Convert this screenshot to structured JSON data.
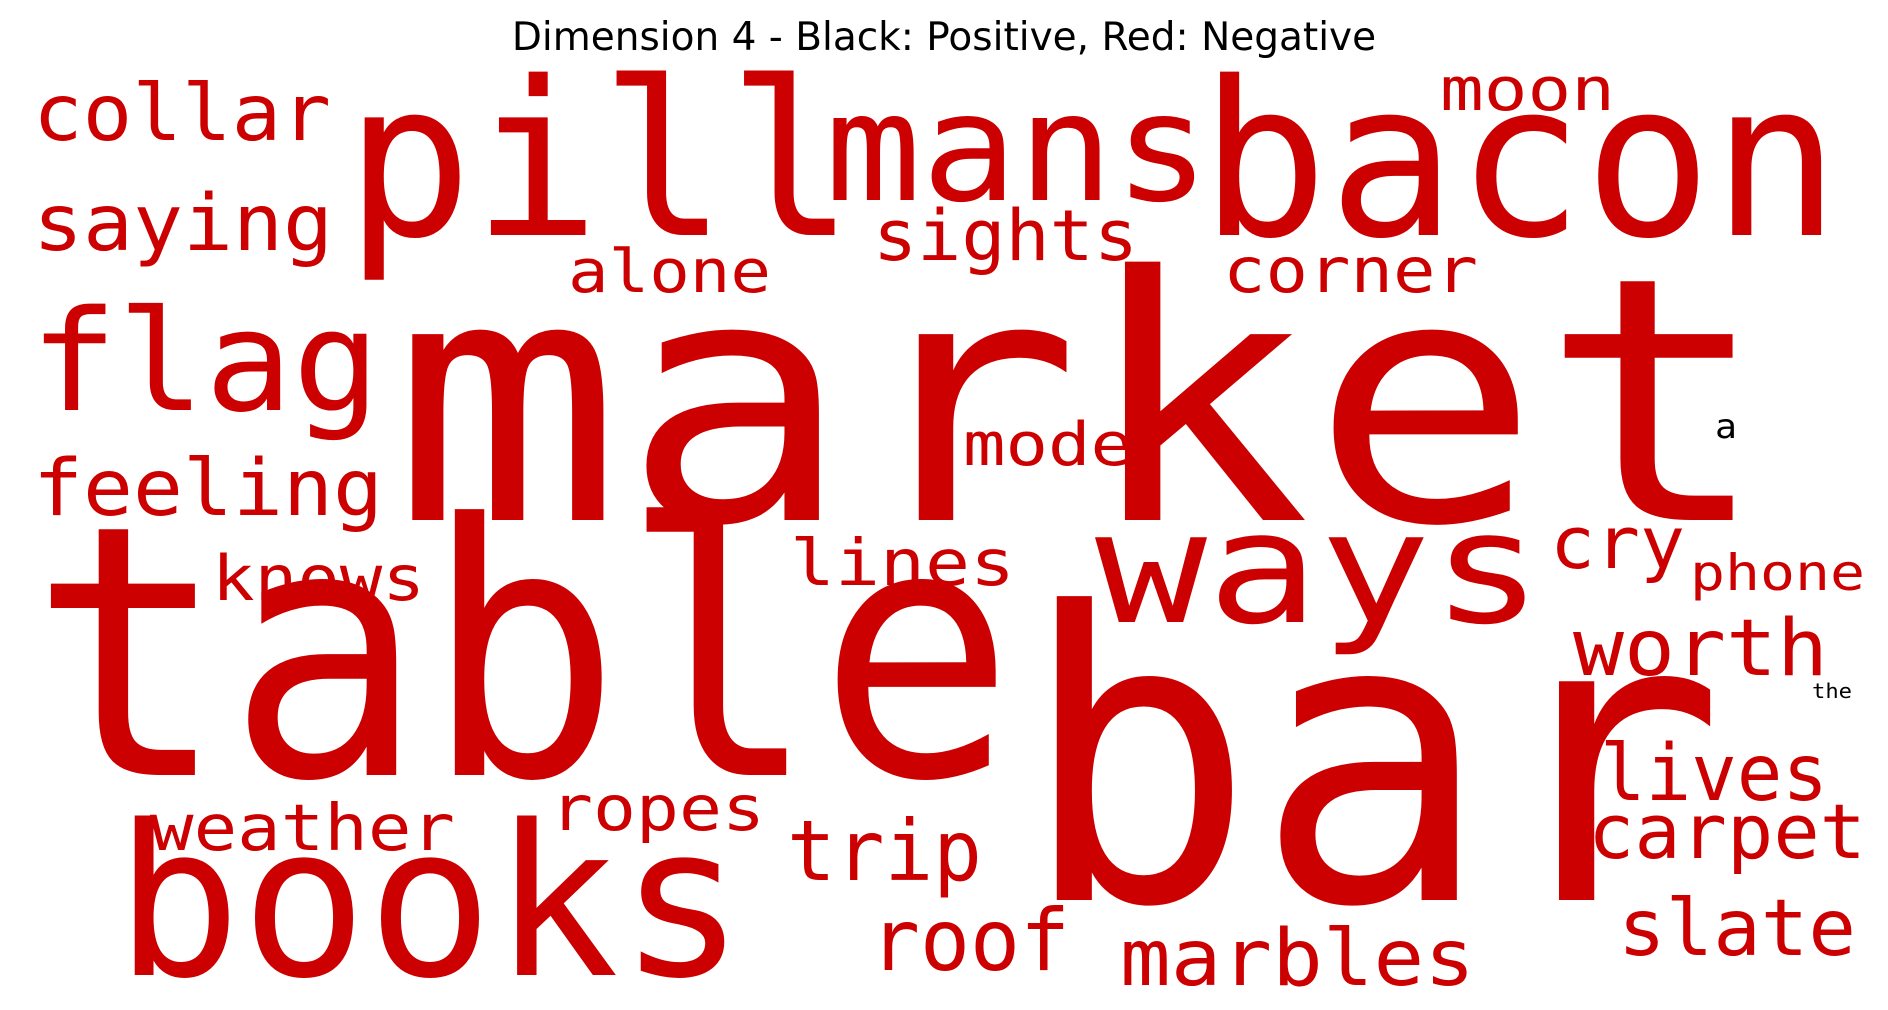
{
  "title": "Dimension 4 - Black: Positive, Red: Negative",
  "colors": {
    "negative": "#CC0000",
    "positive": "#000000"
  },
  "words": [
    {
      "text": "market",
      "polarity": "negative"
    },
    {
      "text": "table",
      "polarity": "negative"
    },
    {
      "text": "bar",
      "polarity": "negative"
    },
    {
      "text": "pill",
      "polarity": "negative"
    },
    {
      "text": "bacon",
      "polarity": "negative"
    },
    {
      "text": "mans",
      "polarity": "negative"
    },
    {
      "text": "books",
      "polarity": "negative"
    },
    {
      "text": "ways",
      "polarity": "negative"
    },
    {
      "text": "flag",
      "polarity": "negative"
    },
    {
      "text": "collar",
      "polarity": "negative"
    },
    {
      "text": "saying",
      "polarity": "negative"
    },
    {
      "text": "feeling",
      "polarity": "negative"
    },
    {
      "text": "moon",
      "polarity": "negative"
    },
    {
      "text": "sights",
      "polarity": "negative"
    },
    {
      "text": "alone",
      "polarity": "negative"
    },
    {
      "text": "corner",
      "polarity": "negative"
    },
    {
      "text": "mode",
      "polarity": "negative"
    },
    {
      "text": "knows",
      "polarity": "negative"
    },
    {
      "text": "lines",
      "polarity": "negative"
    },
    {
      "text": "cry",
      "polarity": "negative"
    },
    {
      "text": "phone",
      "polarity": "negative"
    },
    {
      "text": "worth",
      "polarity": "negative"
    },
    {
      "text": "lives",
      "polarity": "negative"
    },
    {
      "text": "carpet",
      "polarity": "negative"
    },
    {
      "text": "slate",
      "polarity": "negative"
    },
    {
      "text": "weather",
      "polarity": "negative"
    },
    {
      "text": "ropes",
      "polarity": "negative"
    },
    {
      "text": "trip",
      "polarity": "negative"
    },
    {
      "text": "roof",
      "polarity": "negative"
    },
    {
      "text": "marbles",
      "polarity": "negative"
    },
    {
      "text": "a",
      "polarity": "positive"
    },
    {
      "text": "the",
      "polarity": "positive"
    }
  ]
}
